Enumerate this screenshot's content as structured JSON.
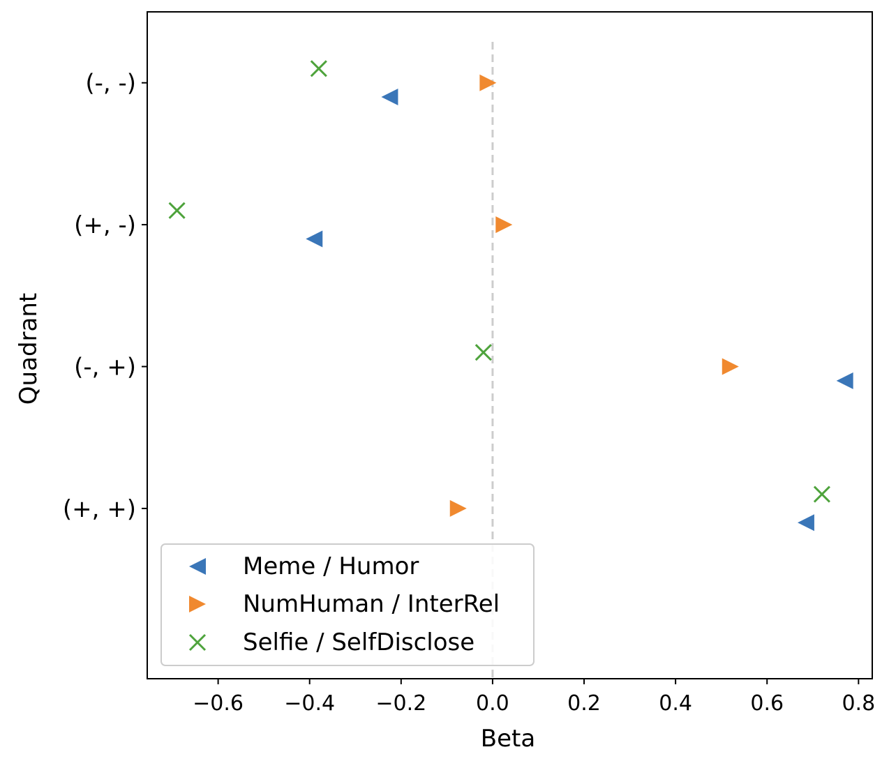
{
  "chart_data": {
    "type": "scatter",
    "title": "",
    "xlabel": "Beta",
    "ylabel": "Quadrant",
    "xlim": [
      -0.755,
      0.83
    ],
    "ylim": [
      -1.2,
      3.5
    ],
    "xticks": [
      -0.6,
      -0.4,
      -0.2,
      0.0,
      0.2,
      0.4,
      0.6,
      0.8
    ],
    "xtick_labels": [
      "−0.6",
      "−0.4",
      "−0.2",
      "0.0",
      "0.2",
      "0.4",
      "0.6",
      "0.8"
    ],
    "categories": [
      "(+, +)",
      "(-, +)",
      "(+, -)",
      "(-, -)"
    ],
    "reference_line": {
      "x": 0.0,
      "style": "dashed",
      "color": "#cccccc"
    },
    "legend_position": "lower-left",
    "series": [
      {
        "name": "Meme / Humor",
        "marker": "triangle-left",
        "color": "#3a76b8",
        "offset": -0.1,
        "values": [
          0.685,
          0.77,
          -0.39,
          -0.225
        ]
      },
      {
        "name": "NumHuman / InterRel",
        "marker": "triangle-right",
        "color": "#f0892f",
        "offset": 0.0,
        "values": [
          -0.075,
          0.52,
          0.025,
          -0.01
        ]
      },
      {
        "name": "Selfie / SelfDisclose",
        "marker": "x",
        "color": "#4ea33c",
        "offset": 0.1,
        "values": [
          0.72,
          -0.02,
          -0.69,
          -0.38
        ]
      }
    ]
  }
}
